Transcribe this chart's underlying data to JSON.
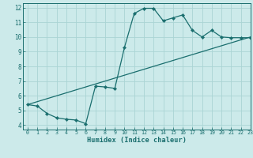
{
  "xlabel": "Humidex (Indice chaleur)",
  "xlim": [
    -0.5,
    23
  ],
  "ylim": [
    3.7,
    12.3
  ],
  "xticks": [
    0,
    1,
    2,
    3,
    4,
    5,
    6,
    7,
    8,
    9,
    10,
    11,
    12,
    13,
    14,
    15,
    16,
    17,
    18,
    19,
    20,
    21,
    22,
    23
  ],
  "yticks": [
    4,
    5,
    6,
    7,
    8,
    9,
    10,
    11,
    12
  ],
  "bg_color": "#cceaea",
  "line_color": "#1a6e6e",
  "grid_color": "#aad4d4",
  "curve1_x": [
    0,
    1,
    2,
    3,
    4,
    5,
    6,
    7,
    8,
    9,
    10,
    11,
    12,
    13,
    14,
    15,
    16,
    17,
    18,
    19,
    20,
    21,
    22,
    23
  ],
  "curve1_y": [
    5.4,
    5.3,
    4.8,
    4.5,
    4.4,
    4.35,
    4.1,
    6.65,
    6.6,
    6.5,
    9.3,
    11.6,
    11.95,
    11.95,
    11.1,
    11.3,
    11.5,
    10.45,
    10.0,
    10.45,
    10.0,
    9.95,
    9.95,
    9.95
  ],
  "curve2_x": [
    0,
    23
  ],
  "curve2_y": [
    5.4,
    10.0
  ]
}
